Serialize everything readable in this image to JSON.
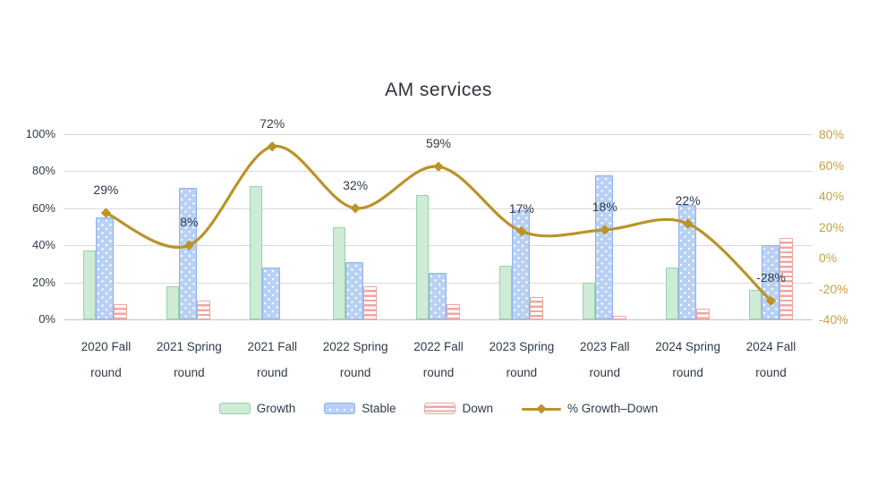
{
  "title": "AM services",
  "chart_data": {
    "type": "combo",
    "title": "AM services",
    "categories": [
      "2020 Fall",
      "2021 Spring",
      "2021 Fall",
      "2022 Spring",
      "2022 Fall",
      "2023 Spring",
      "2023 Fall",
      "2024 Spring",
      "2024 Fall"
    ],
    "category_suffix": "round",
    "series": [
      {
        "name": "Growth",
        "type": "bar",
        "axis": "left",
        "values": [
          37,
          18,
          72,
          50,
          67,
          29,
          20,
          28,
          16
        ]
      },
      {
        "name": "Stable",
        "type": "bar",
        "axis": "left",
        "values": [
          55,
          71,
          28,
          31,
          25,
          59,
          78,
          62,
          40
        ]
      },
      {
        "name": "Down",
        "type": "bar",
        "axis": "left",
        "values": [
          8,
          10,
          0,
          18,
          8,
          12,
          2,
          6,
          44
        ]
      },
      {
        "name": "% Growth–Down",
        "type": "line",
        "axis": "right",
        "values": [
          29,
          8,
          72,
          32,
          59,
          17,
          18,
          22,
          -28
        ],
        "point_labels": [
          "29%",
          "8%",
          "72%",
          "32%",
          "59%",
          "17%",
          "18%",
          "22%",
          "-28%"
        ]
      }
    ],
    "left_axis": {
      "min": 0,
      "max": 100,
      "ticks": [
        "100%",
        "80%",
        "60%",
        "40%",
        "20%",
        "0%"
      ],
      "tick_values": [
        100,
        80,
        60,
        40,
        20,
        0
      ]
    },
    "right_axis": {
      "min": -40,
      "max": 80,
      "ticks": [
        "80%",
        "60%",
        "40%",
        "20%",
        "0%",
        "-20%",
        "-40%"
      ],
      "tick_values": [
        80,
        60,
        40,
        20,
        0,
        -20,
        -40
      ]
    },
    "grid": true,
    "legend_position": "bottom"
  },
  "legend": {
    "items": [
      {
        "label": "Growth",
        "swatch": "growth-bar-swatch"
      },
      {
        "label": "Stable",
        "swatch": "stable-bar-swatch"
      },
      {
        "label": "Down",
        "swatch": "down-bar-swatch"
      },
      {
        "label": "% Growth–Down",
        "swatch": "line-marker-swatch"
      }
    ]
  },
  "colors": {
    "growth_fill": "#cdebd5",
    "growth_border": "#99d2aa",
    "stable_fill": "#b7d0f4",
    "stable_border": "#8fb3ee",
    "down_stripe": "#f2a6a0",
    "down_border": "#eda59f",
    "line": "#bb9327",
    "right_axis_text": "#c6a145",
    "axis_text": "#2e3b4a",
    "gridline": "#dadada",
    "title_text": "#32323e"
  }
}
